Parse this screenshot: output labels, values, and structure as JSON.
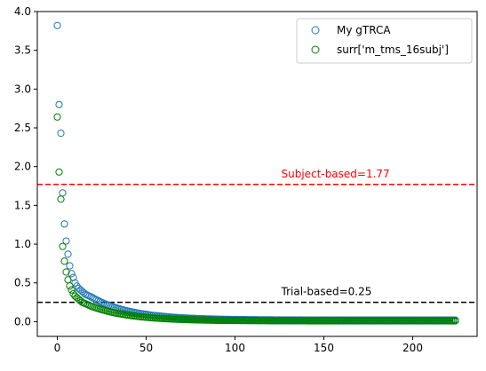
{
  "chart_data": {
    "type": "scatter",
    "title": "",
    "xlabel": "",
    "ylabel": "",
    "xlim": [
      -11.25,
      236.25
    ],
    "ylim": [
      -0.19,
      4.0
    ],
    "xticks": [
      0,
      50,
      100,
      150,
      200
    ],
    "yticks": [
      0.0,
      0.5,
      1.0,
      1.5,
      2.0,
      2.5,
      3.0,
      3.5,
      4.0
    ],
    "xtick_labels": [
      "0",
      "50",
      "100",
      "150",
      "200"
    ],
    "ytick_labels": [
      "0.0",
      "0.5",
      "1.0",
      "1.5",
      "2.0",
      "2.5",
      "3.0",
      "3.5",
      "4.0"
    ],
    "grid": false,
    "legend_position": "upper-right",
    "series": [
      {
        "name": "My gTRCA",
        "marker": "open-circle",
        "color": "#1f77b4",
        "n_points": 225,
        "head_values": [
          3.82,
          2.8,
          2.43,
          1.66,
          1.26,
          1.04,
          0.87,
          0.72,
          0.62,
          0.57,
          0.5,
          0.46,
          0.43,
          0.41,
          0.39,
          0.37,
          0.35,
          0.34,
          0.33,
          0.32
        ],
        "tail_value": 0.02
      },
      {
        "name": "surr['m_tms_16subj']",
        "marker": "open-circle",
        "color": "#008000",
        "n_points": 225,
        "head_values": [
          2.64,
          1.93,
          1.58,
          0.97,
          0.78,
          0.64,
          0.54,
          0.46,
          0.41,
          0.36,
          0.33,
          0.31,
          0.29,
          0.27,
          0.25,
          0.24,
          0.23,
          0.22,
          0.21,
          0.2
        ],
        "tail_value": 0.01
      }
    ],
    "hlines": [
      {
        "y": 1.77,
        "color": "#ff0000",
        "style": "dashed",
        "label": "Subject-based=1.77",
        "label_x": 126,
        "label_color": "#ff0000"
      },
      {
        "y": 0.25,
        "color": "#000000",
        "style": "dashed",
        "label": "Trial-based=0.25",
        "label_x": 126,
        "label_color": "#000000"
      }
    ]
  }
}
